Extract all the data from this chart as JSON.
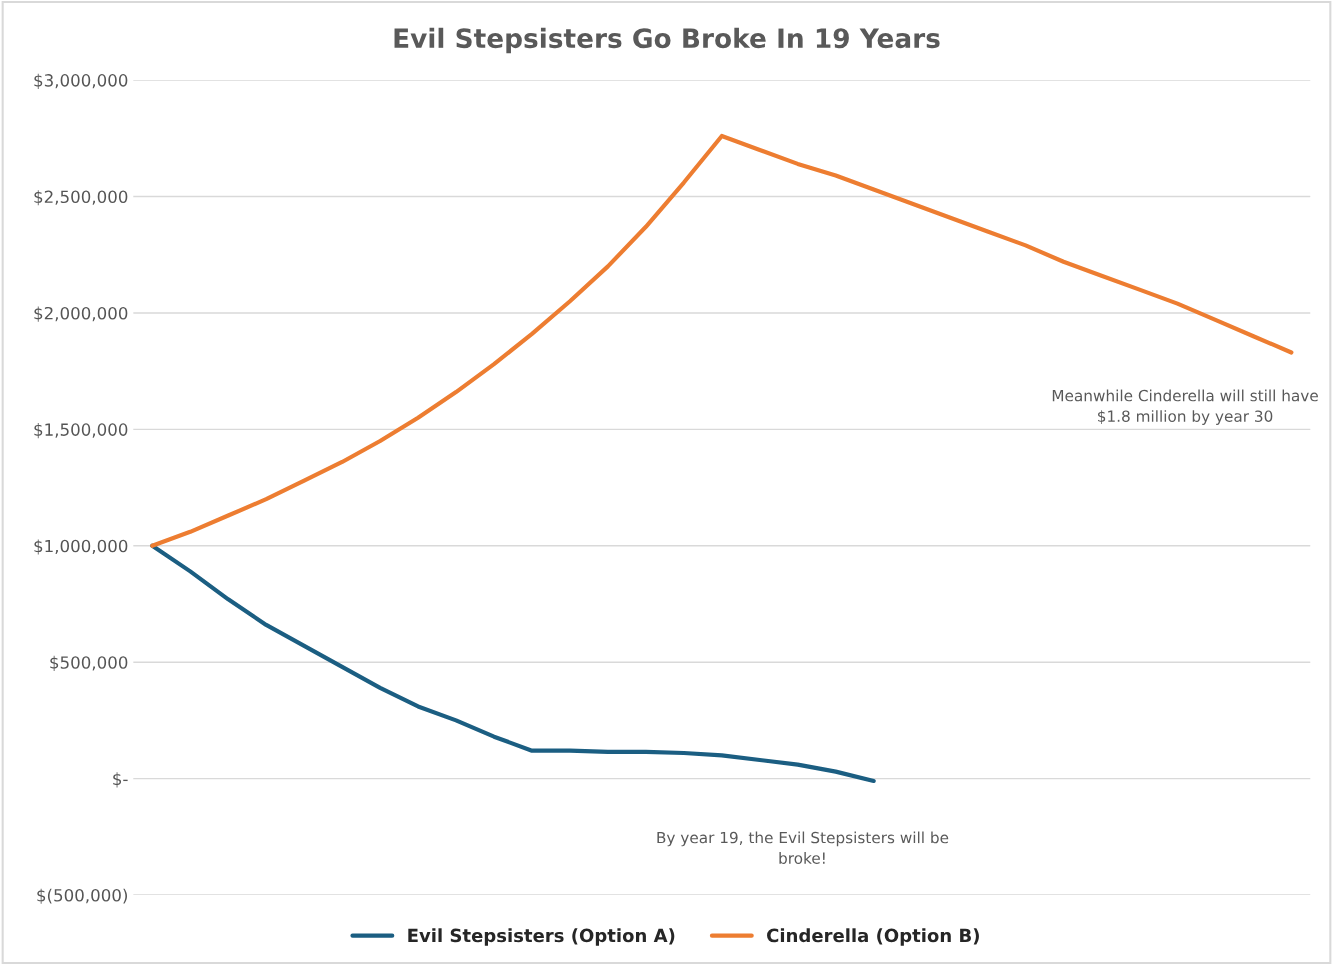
{
  "chart_data": {
    "type": "line",
    "title": "Evil Stepsisters Go Broke In 19 Years",
    "categories": [
      null,
      null,
      null,
      null,
      null,
      null,
      null,
      null,
      null,
      null,
      null,
      null,
      null,
      null,
      null,
      null,
      null,
      null,
      null,
      null,
      null,
      null,
      null,
      null,
      null,
      null,
      null,
      null,
      null,
      null,
      null
    ],
    "series": [
      {
        "name": "Evil Stepsisters (Option A)",
        "color": "#1b5e82",
        "values": [
          1000000,
          890000,
          770000,
          660000,
          570000,
          480000,
          390000,
          310000,
          250000,
          180000,
          120000,
          120000,
          115000,
          115000,
          110000,
          100000,
          80000,
          60000,
          30000,
          -10000,
          null,
          null,
          null,
          null,
          null,
          null,
          null,
          null,
          null,
          null,
          null
        ]
      },
      {
        "name": "Cinderella (Option B)",
        "color": "#ed7d31",
        "values": [
          1000000,
          1060000,
          1130000,
          1200000,
          1280000,
          1360000,
          1450000,
          1550000,
          1660000,
          1780000,
          1910000,
          2050000,
          2200000,
          2370000,
          2560000,
          2760000,
          2700000,
          2640000,
          2590000,
          2530000,
          2470000,
          2410000,
          2350000,
          2290000,
          2220000,
          2160000,
          2100000,
          2040000,
          1970000,
          1900000,
          1830000
        ]
      }
    ],
    "ylim": [
      -500000,
      3000000
    ],
    "yticks": [
      {
        "value": -500000,
        "label": "$(500,000)"
      },
      {
        "value": 0,
        "label": "$-"
      },
      {
        "value": 500000,
        "label": "$500,000"
      },
      {
        "value": 1000000,
        "label": "$1,000,000"
      },
      {
        "value": 1500000,
        "label": "$1,500,000"
      },
      {
        "value": 2000000,
        "label": "$2,000,000"
      },
      {
        "value": 2500000,
        "label": "$2,500,000"
      },
      {
        "value": 3000000,
        "label": "$3,000,000"
      }
    ],
    "grid": "y",
    "legend": "bottom",
    "line_style": "solid",
    "marker": "none",
    "annotations": [
      "By year 19, the Evil Stepsisters will be\nbroke!",
      "Meanwhile Cinderella will still have\n$1.8 million by year 30"
    ]
  }
}
